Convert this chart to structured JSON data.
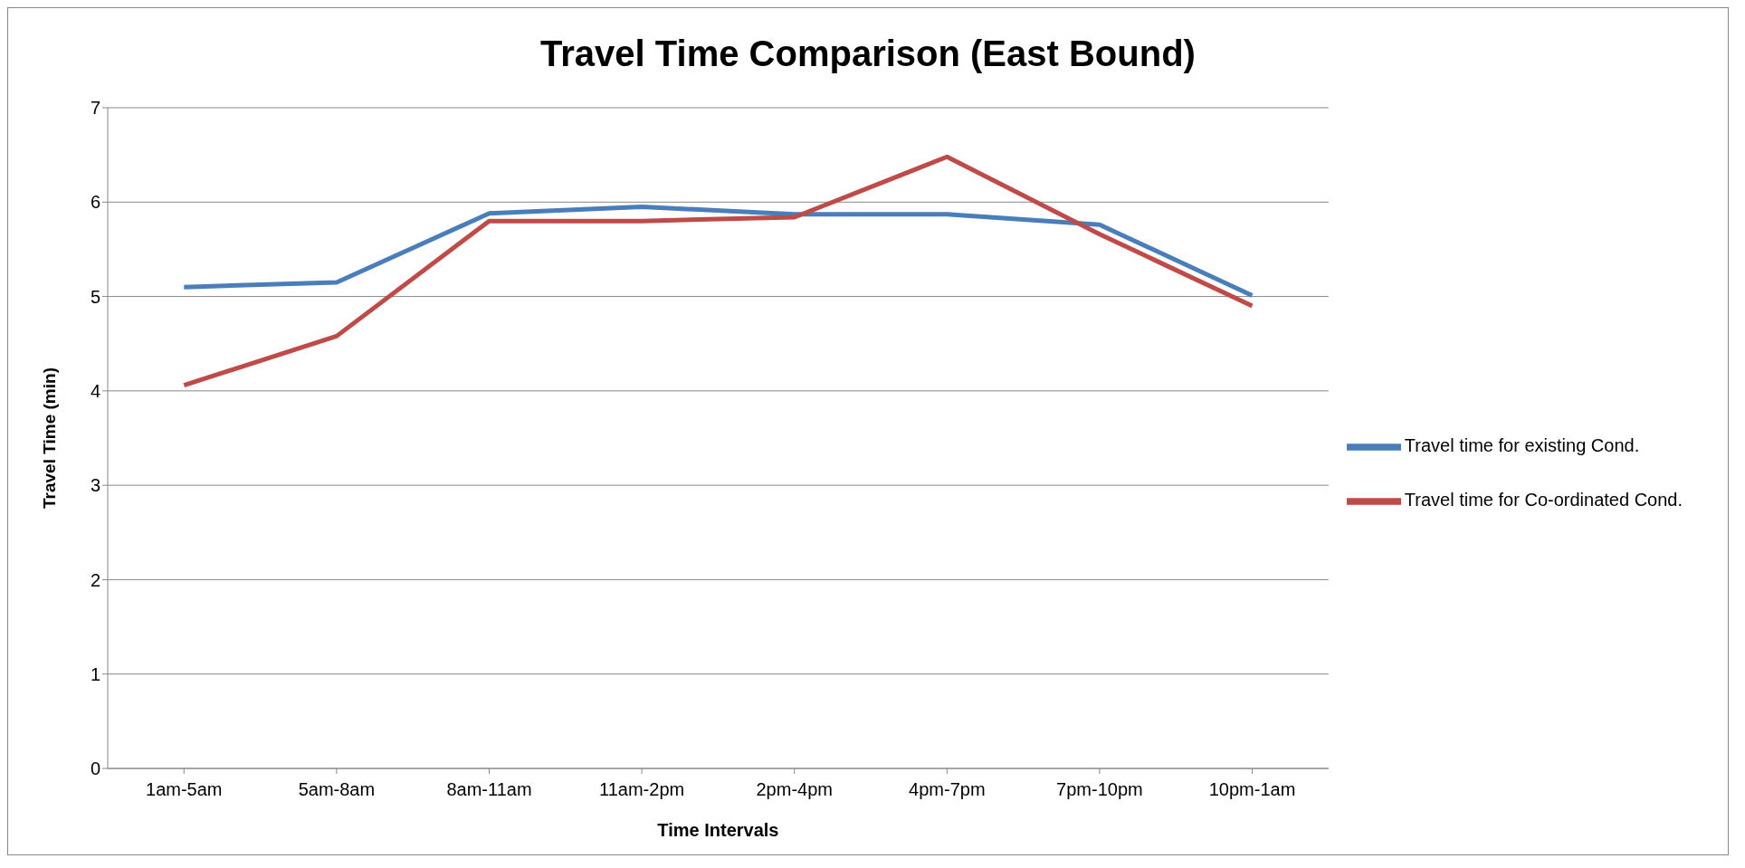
{
  "chart_data": {
    "type": "line",
    "title": "Travel Time Comparison (East Bound)",
    "xlabel": "Time Intervals",
    "ylabel": "Travel Time (min)",
    "categories": [
      "1am-5am",
      "5am-8am",
      "8am-11am",
      "11am-2pm",
      "2pm-4pm",
      "4pm-7pm",
      "7pm-10pm",
      "10pm-1am"
    ],
    "series": [
      {
        "name": "Travel time for existing Cond.",
        "color": "#4a7ebb",
        "values": [
          5.1,
          5.15,
          5.88,
          5.95,
          5.87,
          5.87,
          5.76,
          5.01
        ]
      },
      {
        "name": "Travel time for Co-ordinated Cond.",
        "color": "#be4b48",
        "values": [
          4.06,
          4.58,
          5.8,
          5.8,
          5.84,
          6.48,
          5.66,
          4.9
        ]
      }
    ],
    "ylim": [
      0,
      7
    ],
    "yticks": [
      0,
      1,
      2,
      3,
      4,
      5,
      6,
      7
    ],
    "grid": "y",
    "legend": "right",
    "marker": "none",
    "line_style": "solid"
  }
}
